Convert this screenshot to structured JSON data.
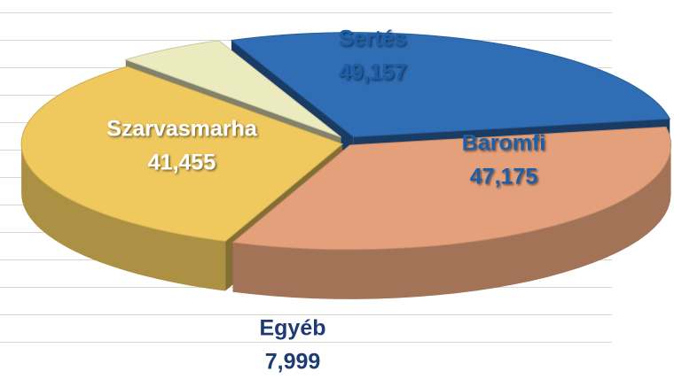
{
  "chart_data": {
    "type": "pie",
    "categories": [
      "Sertés",
      "Baromfi",
      "Egyéb",
      "Szarvasmarha"
    ],
    "values": [
      49157,
      47175,
      7999,
      41455
    ],
    "value_labels": [
      "49,157",
      "47,175",
      "7,999",
      "41,455"
    ],
    "colors": [
      "#e3a07a",
      "#efc85e",
      "#ecebc0",
      "#2f6db5"
    ],
    "label_colors": [
      "#1f5fa8",
      "#1f5fa8",
      "#1f3b73",
      "#ffffff"
    ]
  }
}
